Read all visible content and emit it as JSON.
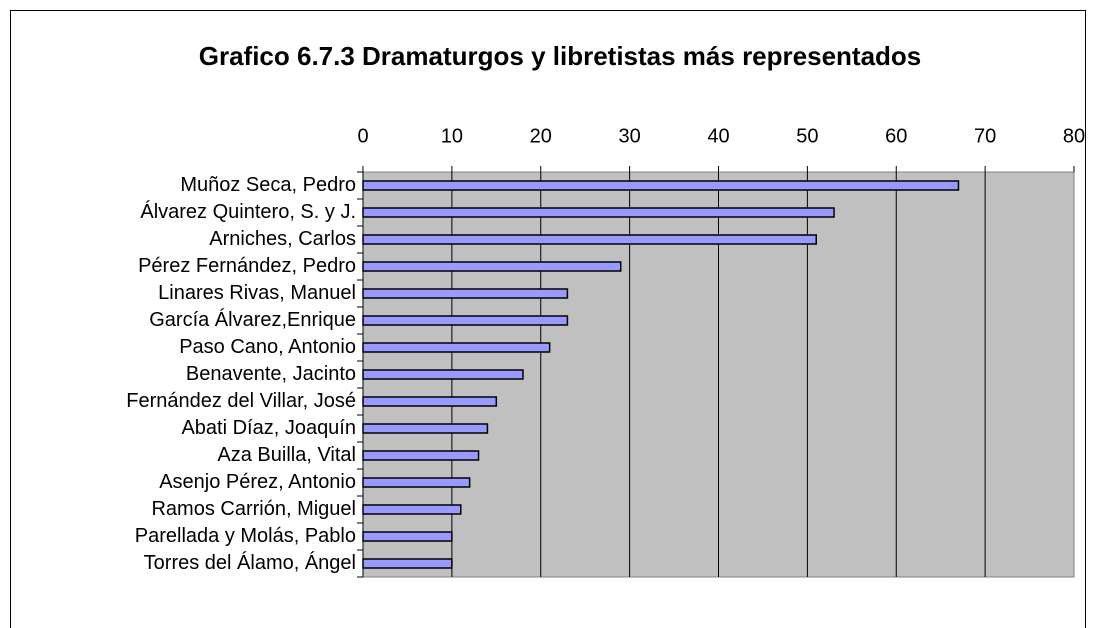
{
  "chart_data": {
    "type": "barh",
    "title": "Grafico 6.7.3 Dramaturgos y libretistas más representados",
    "categories": [
      "Muñoz Seca, Pedro",
      "Álvarez Quintero, S. y J.",
      "Arniches, Carlos",
      "Pérez Fernández, Pedro",
      "Linares Rivas, Manuel",
      "García Álvarez,Enrique",
      "Paso Cano, Antonio",
      "Benavente, Jacinto",
      "Fernández del Villar, José",
      "Abati Díaz, Joaquín",
      "Aza Builla, Vital",
      "Asenjo Pérez, Antonio",
      "Ramos Carrión, Miguel",
      "Parellada y Molás, Pablo",
      "Torres del Álamo, Ángel"
    ],
    "values": [
      67,
      53,
      51,
      29,
      23,
      23,
      21,
      18,
      15,
      14,
      13,
      12,
      11,
      10,
      10
    ],
    "color": "#9999ff",
    "xlim": [
      0,
      80
    ],
    "xticks": [
      0,
      10,
      20,
      30,
      40,
      50,
      60,
      70,
      80
    ],
    "grid": true
  }
}
